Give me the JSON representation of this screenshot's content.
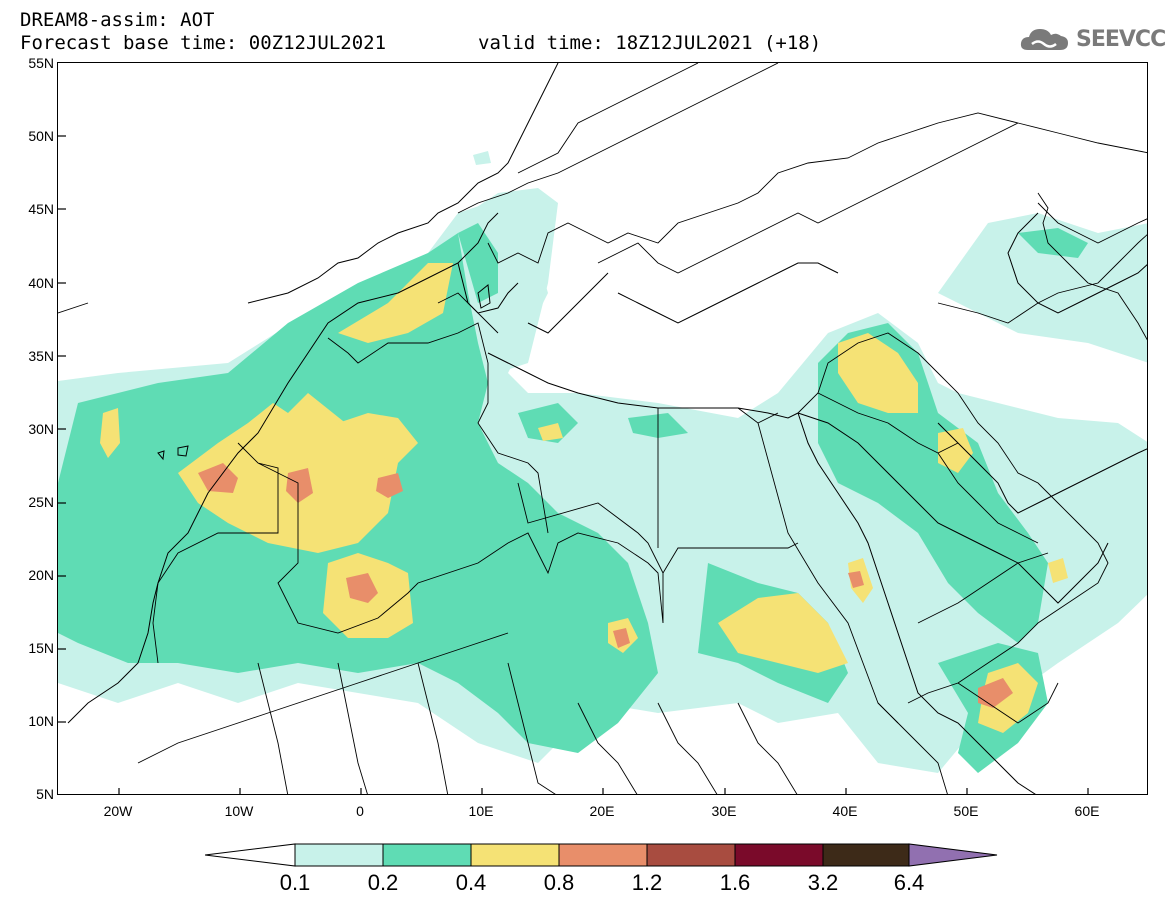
{
  "header": {
    "title": "DREAM8-assim: AOT",
    "forecast": "Forecast base time: 00Z12JUL2021",
    "valid": "valid time: 18Z12JUL2021 (+18)"
  },
  "logo": {
    "text": "SEEVCCC",
    "icon": "cloud-icon"
  },
  "map": {
    "lon_range": [
      -25,
      65
    ],
    "lat_range": [
      5,
      55
    ],
    "y_ticks": [
      "55N",
      "50N",
      "45N",
      "40N",
      "35N",
      "30N",
      "25N",
      "20N",
      "15N",
      "10N",
      "5N"
    ],
    "x_ticks": [
      "20W",
      "10W",
      "0",
      "10E",
      "20E",
      "30E",
      "40E",
      "50E",
      "60E"
    ]
  },
  "colorbar": {
    "levels": [
      "0.1",
      "0.2",
      "0.4",
      "0.8",
      "1.2",
      "1.6",
      "3.2",
      "6.4"
    ],
    "colors": [
      "#c8f2ea",
      "#5fdcb4",
      "#f5e275",
      "#e88e6a",
      "#a84c40",
      "#7a0a2a",
      "#3d2a18",
      "#9170b0"
    ]
  }
}
